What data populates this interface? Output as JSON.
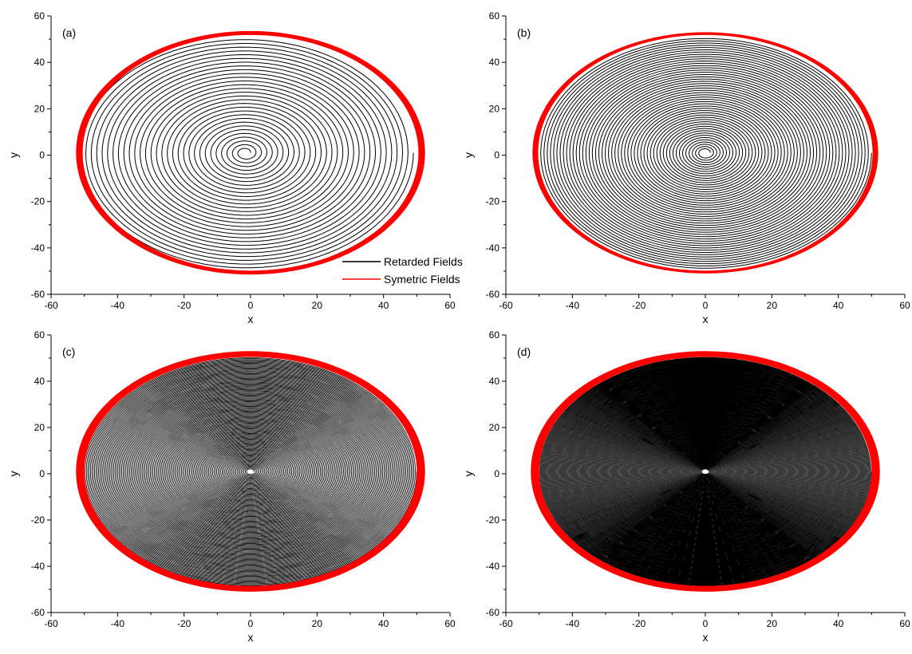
{
  "chart_data": [
    {
      "type": "line",
      "label": "(a)",
      "xlabel": "x",
      "ylabel": "y",
      "xlim": [
        -60,
        60
      ],
      "ylim": [
        -60,
        60
      ],
      "xticks": [
        -60,
        -40,
        -20,
        0,
        20,
        40,
        60
      ],
      "yticks": [
        -60,
        -40,
        -20,
        0,
        20,
        40,
        60
      ],
      "grid": false,
      "legend": "bottom-right",
      "series": [
        {
          "name": "Retarded Fields",
          "color": "#000000",
          "shape": "spiral",
          "turns": 30,
          "start": 1.5,
          "center": [
            -1.5,
            1
          ],
          "rx_outer": 50.5,
          "ry_outer": 50,
          "y_shift_outer": 0
        },
        {
          "name": "Symetric Fields",
          "color": "#ff0000",
          "shape": "ellipse-band",
          "center": [
            0,
            1
          ],
          "rx_outer": 52.5,
          "ry_outer": 52.5,
          "rx_inner": 50.5,
          "ry_inner": 50.8
        }
      ]
    },
    {
      "type": "line",
      "label": "(b)",
      "xlabel": "x",
      "ylabel": "y",
      "xlim": [
        -60,
        60
      ],
      "ylim": [
        -60,
        60
      ],
      "xticks": [
        -60,
        -40,
        -20,
        0,
        20,
        40,
        60
      ],
      "yticks": [
        -60,
        -40,
        -20,
        0,
        20,
        40,
        60
      ],
      "grid": false,
      "series": [
        {
          "name": "Retarded Fields",
          "color": "#000000",
          "shape": "spiral",
          "turns": 50,
          "start": 1.5,
          "center": [
            0,
            1
          ],
          "rx_outer": 50,
          "ry_outer": 50
        },
        {
          "name": "Symetric Fields",
          "color": "#ff0000",
          "shape": "ellipse-band",
          "center": [
            0,
            1
          ],
          "rx_outer": 52,
          "ry_outer": 52,
          "rx_inner": 50.3,
          "ry_inner": 50.8
        }
      ]
    },
    {
      "type": "line",
      "label": "(c)",
      "xlabel": "x",
      "ylabel": "y",
      "xlim": [
        -60,
        60
      ],
      "ylim": [
        -60,
        60
      ],
      "xticks": [
        -60,
        -40,
        -20,
        0,
        20,
        40,
        60
      ],
      "yticks": [
        -60,
        -40,
        -20,
        0,
        20,
        40,
        60
      ],
      "grid": false,
      "series": [
        {
          "name": "Retarded Fields",
          "color": "#000000",
          "shape": "spiral",
          "turns": 120,
          "start": 1.0,
          "center": [
            0,
            1
          ],
          "rx_outer": 50,
          "ry_outer": 49.5
        },
        {
          "name": "Symetric Fields",
          "color": "#ff0000",
          "shape": "ellipse-band",
          "center": [
            0,
            1
          ],
          "rx_outer": 52.5,
          "ry_outer": 52,
          "rx_inner": 50,
          "ry_inner": 49.5
        }
      ]
    },
    {
      "type": "line",
      "label": "(d)",
      "xlabel": "x",
      "ylabel": "y",
      "xlim": [
        -60,
        60
      ],
      "ylim": [
        -60,
        60
      ],
      "xticks": [
        -60,
        -40,
        -20,
        0,
        20,
        40,
        60
      ],
      "yticks": [
        -60,
        -40,
        -20,
        0,
        20,
        40,
        60
      ],
      "grid": false,
      "series": [
        {
          "name": "Retarded Fields",
          "color": "#000000",
          "shape": "spiral",
          "turns": 220,
          "start": 1.0,
          "center": [
            0,
            1
          ],
          "rx_outer": 50,
          "ry_outer": 49.5
        },
        {
          "name": "Symetric Fields",
          "color": "#ff0000",
          "shape": "ellipse-band",
          "center": [
            0,
            1
          ],
          "rx_outer": 52.5,
          "ry_outer": 52,
          "rx_inner": 50,
          "ry_inner": 49.5
        }
      ]
    }
  ]
}
